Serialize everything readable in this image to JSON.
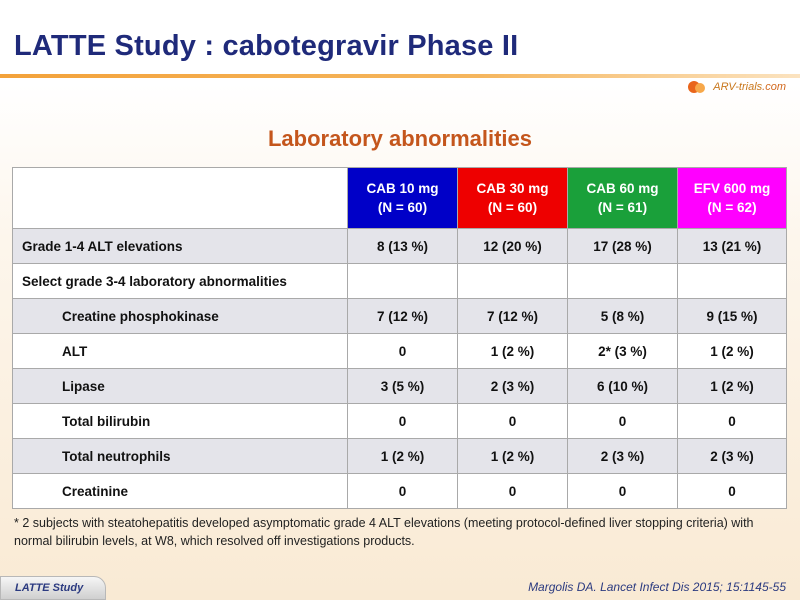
{
  "title": "LATTE Study : cabotegravir Phase II",
  "logo": {
    "text": "ARV-trials",
    "suffix": ".com"
  },
  "subtitle": "Laboratory abnormalities",
  "table": {
    "headers": [
      {
        "line1": "CAB 10 mg",
        "line2": "(N = 60)",
        "color": "#0000c8"
      },
      {
        "line1": "CAB 30 mg",
        "line2": "(N = 60)",
        "color": "#ee0000"
      },
      {
        "line1": "CAB 60 mg",
        "line2": "(N = 61)",
        "color": "#1aa03a"
      },
      {
        "line1": "EFV 600 mg",
        "line2": "(N = 62)",
        "color": "#ff00ff"
      }
    ],
    "rows": [
      {
        "label": "Grade 1-4 ALT elevations",
        "values": [
          "8 (13 %)",
          "12 (20 %)",
          "17 (28 %)",
          "13 (21 %)"
        ]
      },
      {
        "label": "Select grade 3-4 laboratory abnormalities",
        "values": [
          "",
          "",
          "",
          ""
        ]
      },
      {
        "label": "Creatine phosphokinase",
        "values": [
          "7 (12 %)",
          "7 (12 %)",
          "5 (8 %)",
          "9 (15 %)"
        ]
      },
      {
        "label": "ALT",
        "values": [
          "0",
          "1 (2 %)",
          "2* (3 %)",
          "1 (2 %)"
        ]
      },
      {
        "label": "Lipase",
        "values": [
          "3 (5 %)",
          "2 (3 %)",
          "6 (10 %)",
          "1 (2 %)"
        ]
      },
      {
        "label": "Total bilirubin",
        "values": [
          "0",
          "0",
          "0",
          "0"
        ]
      },
      {
        "label": "Total neutrophils",
        "values": [
          "1 (2 %)",
          "1 (2 %)",
          "2 (3 %)",
          "2 (3 %)"
        ]
      },
      {
        "label": "Creatinine",
        "values": [
          "0",
          "0",
          "0",
          "0"
        ]
      }
    ]
  },
  "footnote": "* 2 subjects with steatohepatitis developed asymptomatic grade 4 ALT elevations (meeting protocol-defined liver stopping criteria) with normal bilirubin levels, at W8, which resolved off investigations products.",
  "footer": {
    "tag": "LATTE Study",
    "citation": "Margolis DA. Lancet Infect Dis 2015; 15:1145-55"
  }
}
